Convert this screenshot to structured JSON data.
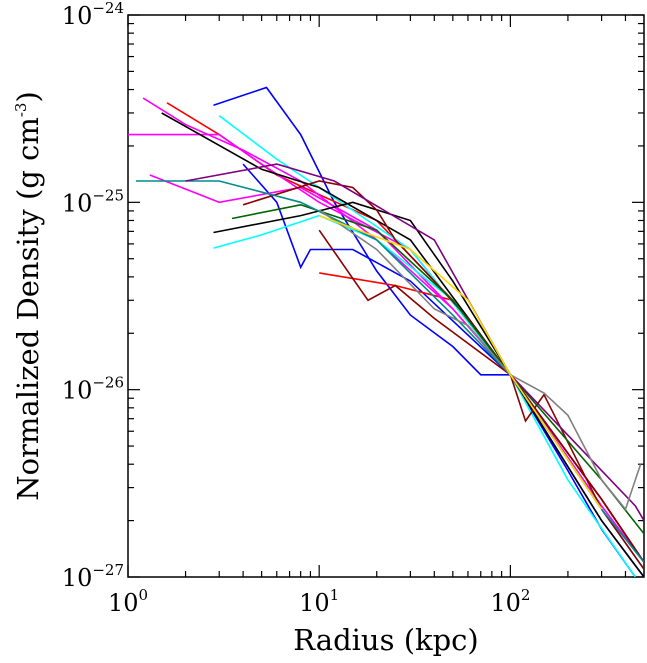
{
  "chart_data": {
    "type": "line",
    "xlabel": "Radius (kpc)",
    "ylabel": "Normalized Density (g cm",
    "ylabel_exponent": "-3",
    "ylabel_end": ")",
    "log_x": true,
    "log_y": true,
    "xlim": [
      1,
      500
    ],
    "ylim": [
      1e-27,
      1e-24
    ],
    "xticks": [
      {
        "value": 1,
        "label": "10",
        "exponent": "0"
      },
      {
        "value": 10,
        "label": "10",
        "exponent": "1"
      },
      {
        "value": 100,
        "label": "10",
        "exponent": "2"
      }
    ],
    "yticks": [
      {
        "value": 1e-27,
        "label": "10",
        "exponent": "−27"
      },
      {
        "value": 1e-26,
        "label": "10",
        "exponent": "−26"
      },
      {
        "value": 1e-25,
        "label": "10",
        "exponent": "−25"
      },
      {
        "value": 1e-24,
        "label": "10",
        "exponent": "−24"
      }
    ],
    "series": [
      {
        "color": "#0000ff",
        "x": [
          2.8,
          5.3,
          8,
          12,
          20,
          30,
          50,
          70,
          100,
          200,
          300,
          450
        ],
        "values": [
          3.3e-25,
          4.1e-25,
          2.3e-25,
          1e-25,
          4.3e-26,
          2.5e-26,
          1.7e-26,
          1.2e-26,
          1.2e-26,
          3.7e-27,
          1.8e-27,
          1e-27
        ]
      },
      {
        "color": "#0000ff",
        "x": [
          4,
          6,
          8,
          9,
          15,
          30,
          100,
          300,
          500
        ],
        "values": [
          1.6e-25,
          1e-25,
          4.5e-26,
          5.6e-26,
          5.6e-26,
          3.8e-26,
          1.2e-26,
          2e-27,
          1e-27
        ]
      },
      {
        "color": "#ff0000",
        "x": [
          1.6,
          3,
          6,
          10,
          20,
          50,
          100,
          300,
          500
        ],
        "values": [
          3.4e-25,
          2.3e-25,
          1.4e-25,
          1.1e-25,
          8e-26,
          3e-26,
          1.2e-26,
          2.6e-27,
          1.2e-27
        ]
      },
      {
        "color": "#ff0000",
        "x": [
          10,
          25,
          50
        ],
        "values": [
          4.2e-26,
          3.6e-26,
          3e-26
        ]
      },
      {
        "color": "#ff00ff",
        "x": [
          1.2,
          2,
          4,
          8,
          20,
          50,
          100,
          300,
          500
        ],
        "values": [
          3.6e-25,
          2.6e-25,
          1.9e-25,
          1.3e-25,
          6.3e-26,
          2.7e-26,
          1.2e-26,
          2.4e-27,
          1.2e-27
        ]
      },
      {
        "color": "#ff00ff",
        "x": [
          1,
          3,
          5,
          10,
          30,
          100,
          300,
          500
        ],
        "values": [
          2.3e-25,
          2.3e-25,
          1.6e-25,
          1e-25,
          5.6e-26,
          1.2e-26,
          2.3e-27,
          1.1e-27
        ]
      },
      {
        "color": "#ff00ff",
        "x": [
          1.3,
          3,
          8,
          20,
          50,
          100,
          300,
          500
        ],
        "values": [
          1.4e-25,
          1e-25,
          1.2e-25,
          7.1e-26,
          2.7e-26,
          1.2e-26,
          2.6e-27,
          1.2e-27
        ]
      },
      {
        "color": "#00ffff",
        "x": [
          2.8,
          5,
          10,
          20,
          50,
          100,
          200,
          450
        ],
        "values": [
          5.7e-26,
          6.7e-26,
          8.5e-26,
          6.3e-26,
          3e-26,
          1.2e-26,
          3.3e-27,
          1e-27
        ]
      },
      {
        "color": "#00ffff",
        "x": [
          3,
          6,
          10,
          30,
          100,
          300,
          500
        ],
        "values": [
          2.9e-25,
          1.7e-25,
          1.2e-25,
          5.6e-26,
          1.2e-26,
          2.3e-27,
          1.1e-27
        ]
      },
      {
        "color": "#000000",
        "x": [
          2.8,
          8,
          15,
          30,
          50,
          100,
          300,
          500
        ],
        "values": [
          6.9e-26,
          8.5e-26,
          1e-25,
          8e-26,
          3.8e-26,
          1.2e-26,
          2e-27,
          1e-27
        ]
      },
      {
        "color": "#000000",
        "x": [
          1.5,
          5,
          10,
          30,
          100,
          300,
          500
        ],
        "values": [
          3e-25,
          1.5e-25,
          1.2e-25,
          6.3e-26,
          1.2e-26,
          2.6e-27,
          1.2e-27
        ]
      },
      {
        "color": "#8b0000",
        "x": [
          4,
          10,
          15,
          20,
          25,
          40,
          60,
          100,
          120,
          150,
          300,
          500
        ],
        "values": [
          9.7e-26,
          1.3e-25,
          1.2e-25,
          9.1e-26,
          6.3e-26,
          3.8e-26,
          2.4e-26,
          1.2e-26,
          6.8e-27,
          9.4e-27,
          2.3e-27,
          1.1e-27
        ]
      },
      {
        "color": "#8b0000",
        "x": [
          10,
          18,
          25,
          40,
          100,
          300,
          500
        ],
        "values": [
          7.1e-26,
          3e-26,
          3.6e-26,
          2.4e-26,
          1.2e-26,
          2.6e-27,
          1.2e-27
        ]
      },
      {
        "color": "#006400",
        "x": [
          3.5,
          8,
          20,
          50,
          100,
          300,
          500
        ],
        "values": [
          8.2e-26,
          9.7e-26,
          7.1e-26,
          3e-26,
          1.2e-26,
          3.3e-27,
          1.7e-27
        ]
      },
      {
        "color": "#008b8b",
        "x": [
          1.1,
          3,
          8,
          20,
          50,
          100,
          300,
          500
        ],
        "values": [
          1.3e-25,
          1.3e-25,
          1e-25,
          6.3e-26,
          2.5e-26,
          1.2e-26,
          2.3e-27,
          1.2e-27
        ]
      },
      {
        "color": "#800080",
        "x": [
          2,
          6,
          12,
          40,
          100,
          300,
          450,
          500
        ],
        "values": [
          1.3e-25,
          1.6e-25,
          1.3e-25,
          6.3e-26,
          1.2e-26,
          3.7e-27,
          2.4e-27,
          2e-27
        ]
      },
      {
        "color": "#808080",
        "x": [
          10,
          20,
          40,
          60,
          100,
          150,
          200,
          300,
          400,
          480
        ],
        "values": [
          9.1e-26,
          5.6e-26,
          2.7e-26,
          2.2e-26,
          1.2e-26,
          9.6e-27,
          7.3e-27,
          3.3e-27,
          2.3e-27,
          4e-27
        ]
      },
      {
        "color": "#ffd700",
        "x": [
          10,
          30,
          60,
          100,
          300
        ],
        "values": [
          8.5e-26,
          5.6e-26,
          3e-26,
          1.2e-26,
          2.3e-27
        ]
      }
    ]
  }
}
